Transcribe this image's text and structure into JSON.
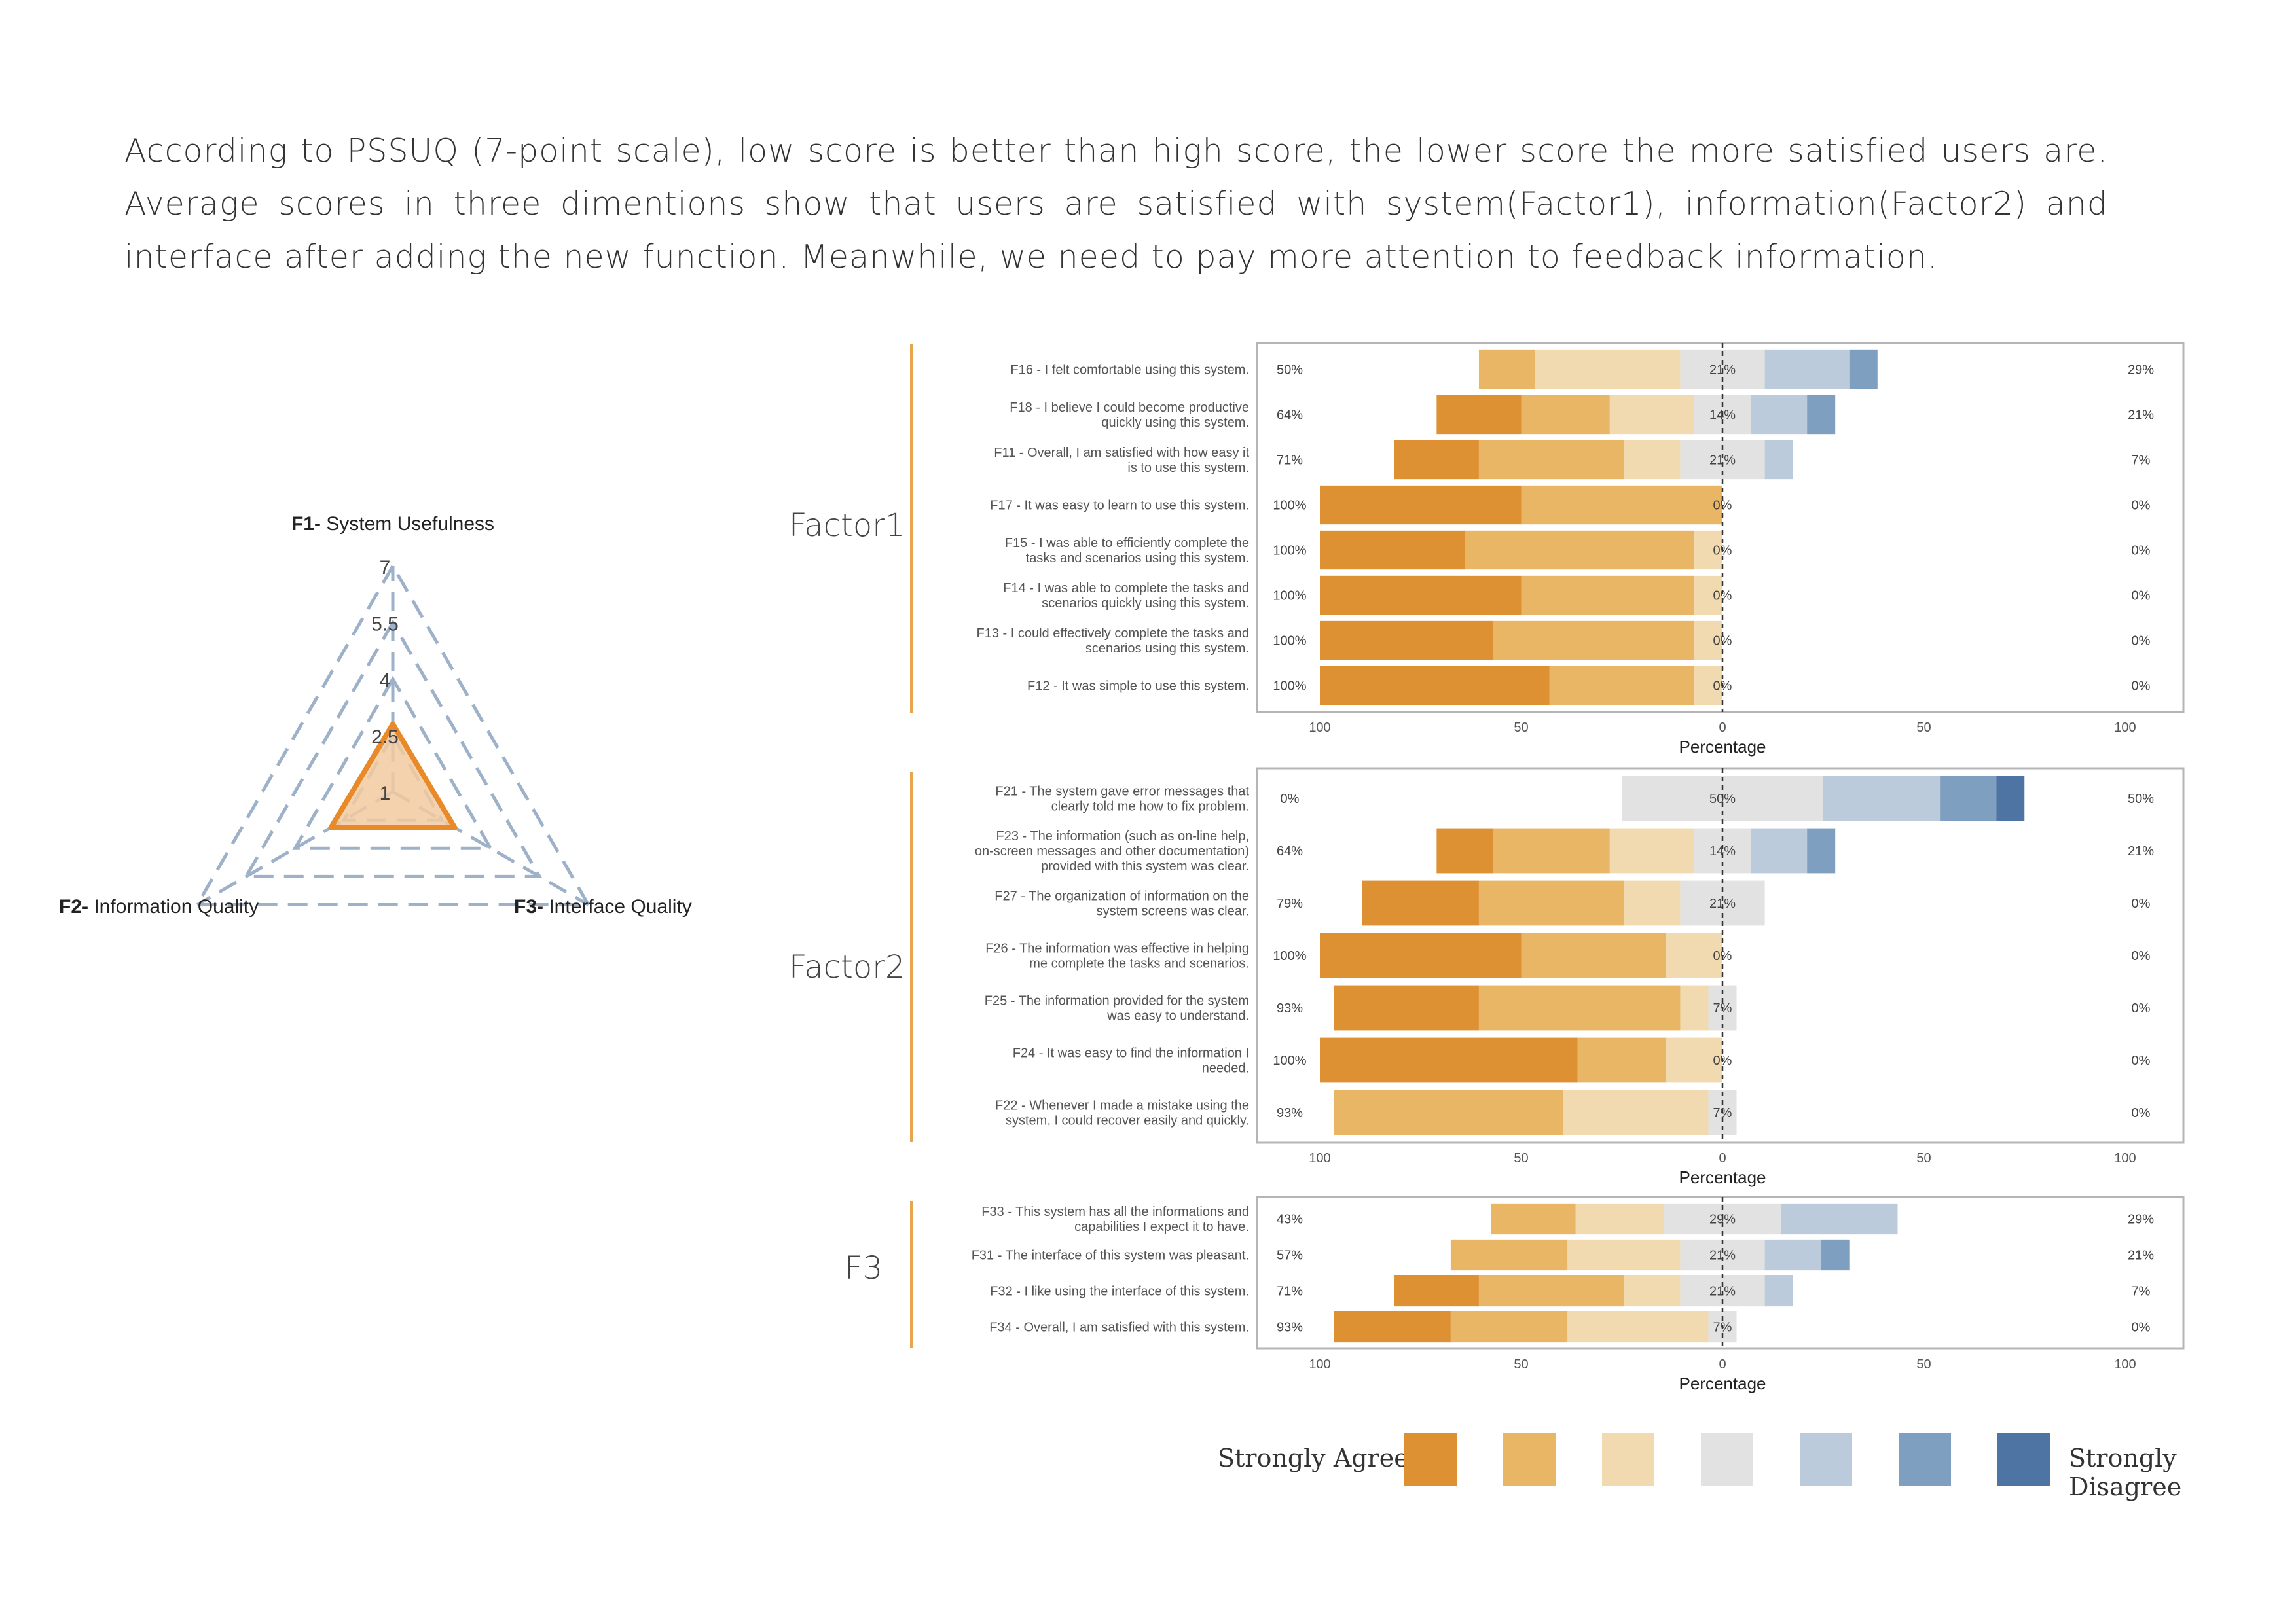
{
  "intro": "According to PSSUQ (7-point scale), low score is better than high score, the lower score the more satisfied users are. Average scores in three dimentions show that users are satisfied with system(Factor1), information(Factor2) and interface after adding the new function. Meanwhile, we need to pay more attention to feedback information.",
  "colors": {
    "levels": [
      "#de9133",
      "#e8b664",
      "#f2dab0",
      "#e2e2e2",
      "#bccbdc",
      "#7e9fc0",
      "#4d74a3"
    ],
    "radar_grid": "#9db1c9",
    "radar_fill": "#f2caa0",
    "radar_line": "#e88a2a",
    "factor_rule": "#e8a64c"
  },
  "legend": {
    "left": "Strongly Agree",
    "right": "Strongly Disagree"
  },
  "radar": {
    "axes": [
      {
        "prefix": "F1-",
        "name": "System Usefulness"
      },
      {
        "prefix": "F2-",
        "name": "Information Quality"
      },
      {
        "prefix": "F3-",
        "name": "Interface Quality"
      }
    ],
    "ticks": [
      "1",
      "2.5",
      "4",
      "5.5",
      "7"
    ]
  },
  "chart_data": [
    {
      "type": "radar",
      "axes": [
        "F1- System Usefulness",
        "F2- Information Quality",
        "F3- Interface Quality"
      ],
      "range": [
        1,
        7
      ],
      "ticks": [
        1,
        2.5,
        4,
        5.5,
        7
      ],
      "values": [
        2.8,
        2.9,
        2.9
      ]
    },
    {
      "type": "diverging-stacked-bar",
      "group": "Factor1",
      "xlabel": "Percentage",
      "xticks": [
        "100",
        "50",
        "0",
        "50",
        "100"
      ],
      "xlim": [
        -100,
        100
      ],
      "levels": [
        "Strongly Agree",
        "",
        "",
        "",
        "",
        "",
        "Strongly Disagree"
      ],
      "items": [
        {
          "label": "F16 - I felt comfortable using this system.",
          "left": "50%",
          "center": "21%",
          "right": "29%",
          "values": [
            0,
            14,
            36,
            21,
            21,
            7,
            0
          ]
        },
        {
          "label": "F18 - I believe I could become productive quickly using this system.",
          "left": "64%",
          "center": "14%",
          "right": "21%",
          "values": [
            21,
            22,
            21,
            14,
            14,
            7,
            0
          ]
        },
        {
          "label": "F11 - Overall, I am satisfied with how easy it is to use this system.",
          "left": "71%",
          "center": "21%",
          "right": "7%",
          "values": [
            21,
            36,
            14,
            21,
            7,
            0,
            0
          ]
        },
        {
          "label": "F17 - It was easy to learn to use this system.",
          "left": "100%",
          "center": "0%",
          "right": "0%",
          "values": [
            50,
            50,
            0,
            0,
            0,
            0,
            0
          ]
        },
        {
          "label": "F15 - I was able to efficiently complete the tasks and scenarios using this system.",
          "left": "100%",
          "center": "0%",
          "right": "0%",
          "values": [
            36,
            57,
            7,
            0,
            0,
            0,
            0
          ]
        },
        {
          "label": "F14 - I was able to complete the tasks and scenarios quickly using this system.",
          "left": "100%",
          "center": "0%",
          "right": "0%",
          "values": [
            50,
            43,
            7,
            0,
            0,
            0,
            0
          ]
        },
        {
          "label": "F13 - I could effectively complete the tasks and scenarios using this system.",
          "left": "100%",
          "center": "0%",
          "right": "0%",
          "values": [
            43,
            50,
            7,
            0,
            0,
            0,
            0
          ]
        },
        {
          "label": "F12 - It was simple to use this system.",
          "left": "100%",
          "center": "0%",
          "right": "0%",
          "values": [
            57,
            36,
            7,
            0,
            0,
            0,
            0
          ]
        }
      ]
    },
    {
      "type": "diverging-stacked-bar",
      "group": "Factor2",
      "xlabel": "Percentage",
      "xticks": [
        "100",
        "50",
        "0",
        "50",
        "100"
      ],
      "xlim": [
        -100,
        100
      ],
      "levels": [
        "Strongly Agree",
        "",
        "",
        "",
        "",
        "",
        "Strongly Disagree"
      ],
      "items": [
        {
          "label": "F21 - The system gave error messages that clearly told me how to fix problem.",
          "left": "0%",
          "center": "50%",
          "right": "50%",
          "values": [
            0,
            0,
            0,
            50,
            29,
            14,
            7
          ]
        },
        {
          "label": "F23 - The information (such as on-line help, on-screen messages and other documentation) provided with this system was clear.",
          "left": "64%",
          "center": "14%",
          "right": "21%",
          "values": [
            14,
            29,
            21,
            14,
            14,
            7,
            0
          ]
        },
        {
          "label": "F27 - The organization of information on the system screens was clear.",
          "left": "79%",
          "center": "21%",
          "right": "0%",
          "values": [
            29,
            36,
            14,
            21,
            0,
            0,
            0
          ]
        },
        {
          "label": "F26 - The information was effective in helping me complete the tasks and scenarios.",
          "left": "100%",
          "center": "0%",
          "right": "0%",
          "values": [
            50,
            36,
            14,
            0,
            0,
            0,
            0
          ]
        },
        {
          "label": "F25 - The information provided for the system was easy to understand.",
          "left": "93%",
          "center": "7%",
          "right": "0%",
          "values": [
            36,
            50,
            7,
            7,
            0,
            0,
            0
          ]
        },
        {
          "label": "F24 - It was easy to find the information I needed.",
          "left": "100%",
          "center": "0%",
          "right": "0%",
          "values": [
            64,
            22,
            14,
            0,
            0,
            0,
            0
          ]
        },
        {
          "label": "F22 - Whenever I made a mistake using the system, I could recover easily and quickly.",
          "left": "93%",
          "center": "7%",
          "right": "0%",
          "values": [
            0,
            57,
            36,
            7,
            0,
            0,
            0
          ]
        }
      ]
    },
    {
      "type": "diverging-stacked-bar",
      "group": "F3",
      "xlabel": "Percentage",
      "xticks": [
        "100",
        "50",
        "0",
        "50",
        "100"
      ],
      "xlim": [
        -100,
        100
      ],
      "levels": [
        "Strongly Agree",
        "",
        "",
        "",
        "",
        "",
        "Strongly Disagree"
      ],
      "items": [
        {
          "label": "F33 - This system has all the informations and capabilities I expect it to have.",
          "left": "43%",
          "center": "29%",
          "right": "29%",
          "values": [
            0,
            21,
            22,
            29,
            29,
            0,
            0
          ]
        },
        {
          "label": "F31 - The interface of this system was pleasant.",
          "left": "57%",
          "center": "21%",
          "right": "21%",
          "values": [
            0,
            29,
            28,
            21,
            14,
            7,
            0
          ]
        },
        {
          "label": "F32 - I like using the interface of this system.",
          "left": "71%",
          "center": "21%",
          "right": "7%",
          "values": [
            21,
            36,
            14,
            21,
            7,
            0,
            0
          ]
        },
        {
          "label": "F34 - Overall, I am satisfied with this system.",
          "left": "93%",
          "center": "7%",
          "right": "0%",
          "values": [
            29,
            29,
            35,
            7,
            0,
            0,
            0
          ]
        }
      ]
    }
  ],
  "factor_names": [
    "Factor1",
    "Factor2",
    "F3"
  ]
}
